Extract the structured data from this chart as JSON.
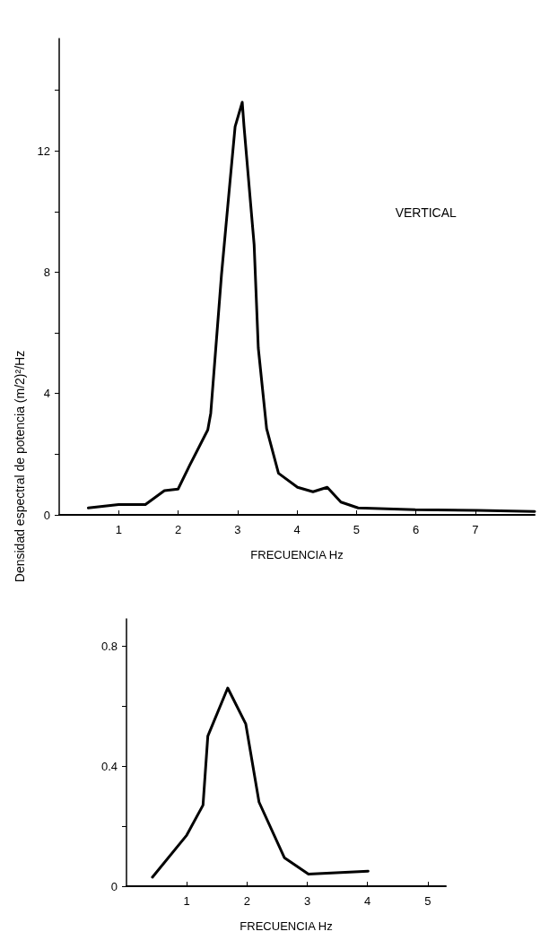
{
  "chart_data": [
    {
      "type": "line",
      "xlabel": "FRECUENCIA Hz",
      "ylabel": "Densidad espectral de potencia (m/2)²/Hz",
      "annotations": [
        "VERTICAL"
      ],
      "x": [
        0.49,
        1.0,
        1.45,
        1.77,
        2.0,
        2.2,
        2.5,
        2.55,
        2.73,
        2.87,
        2.96,
        3.08,
        3.11,
        3.28,
        3.35,
        3.49,
        3.69,
        4.01,
        4.27,
        4.51,
        4.74,
        5.03,
        5.99,
        7.04,
        8.0
      ],
      "series": [
        {
          "color": "#000000",
          "values": [
            0.23,
            0.34,
            0.34,
            0.8,
            0.85,
            1.65,
            2.8,
            3.35,
            7.9,
            10.9,
            12.8,
            13.6,
            12.8,
            8.9,
            5.5,
            2.84,
            1.37,
            0.91,
            0.76,
            0.91,
            0.42,
            0.23,
            0.17,
            0.15,
            0.11
          ]
        }
      ],
      "xlim": [
        0,
        8
      ],
      "xticks": [
        1,
        2,
        3,
        4,
        5,
        6,
        7
      ],
      "ylim": [
        0,
        15.7
      ],
      "yticks": [
        0,
        {
          "value": 2,
          "label": null
        },
        4,
        {
          "value": 6,
          "label": null
        },
        8,
        {
          "value": 10,
          "label": null
        },
        12,
        {
          "value": 14,
          "label": null
        }
      ],
      "marker": "none",
      "line_style": "solid"
    },
    {
      "type": "line",
      "xlabel": "FRECUENCIA Hz",
      "x": [
        0.43,
        1.0,
        1.27,
        1.35,
        1.68,
        1.98,
        2.2,
        2.62,
        3.02,
        4.01
      ],
      "series": [
        {
          "color": "#000000",
          "values": [
            0.03,
            0.17,
            0.27,
            0.5,
            0.66,
            0.54,
            0.28,
            0.095,
            0.04,
            0.05
          ]
        }
      ],
      "xlim": [
        0,
        5.3
      ],
      "xticks": [
        1,
        2,
        3,
        4,
        5
      ],
      "ylim": [
        0,
        0.89
      ],
      "yticks": [
        0,
        {
          "value": 0.2,
          "label": null
        },
        0.4,
        {
          "value": 0.6,
          "label": null
        },
        0.8
      ],
      "marker": "none",
      "line_style": "solid"
    }
  ]
}
